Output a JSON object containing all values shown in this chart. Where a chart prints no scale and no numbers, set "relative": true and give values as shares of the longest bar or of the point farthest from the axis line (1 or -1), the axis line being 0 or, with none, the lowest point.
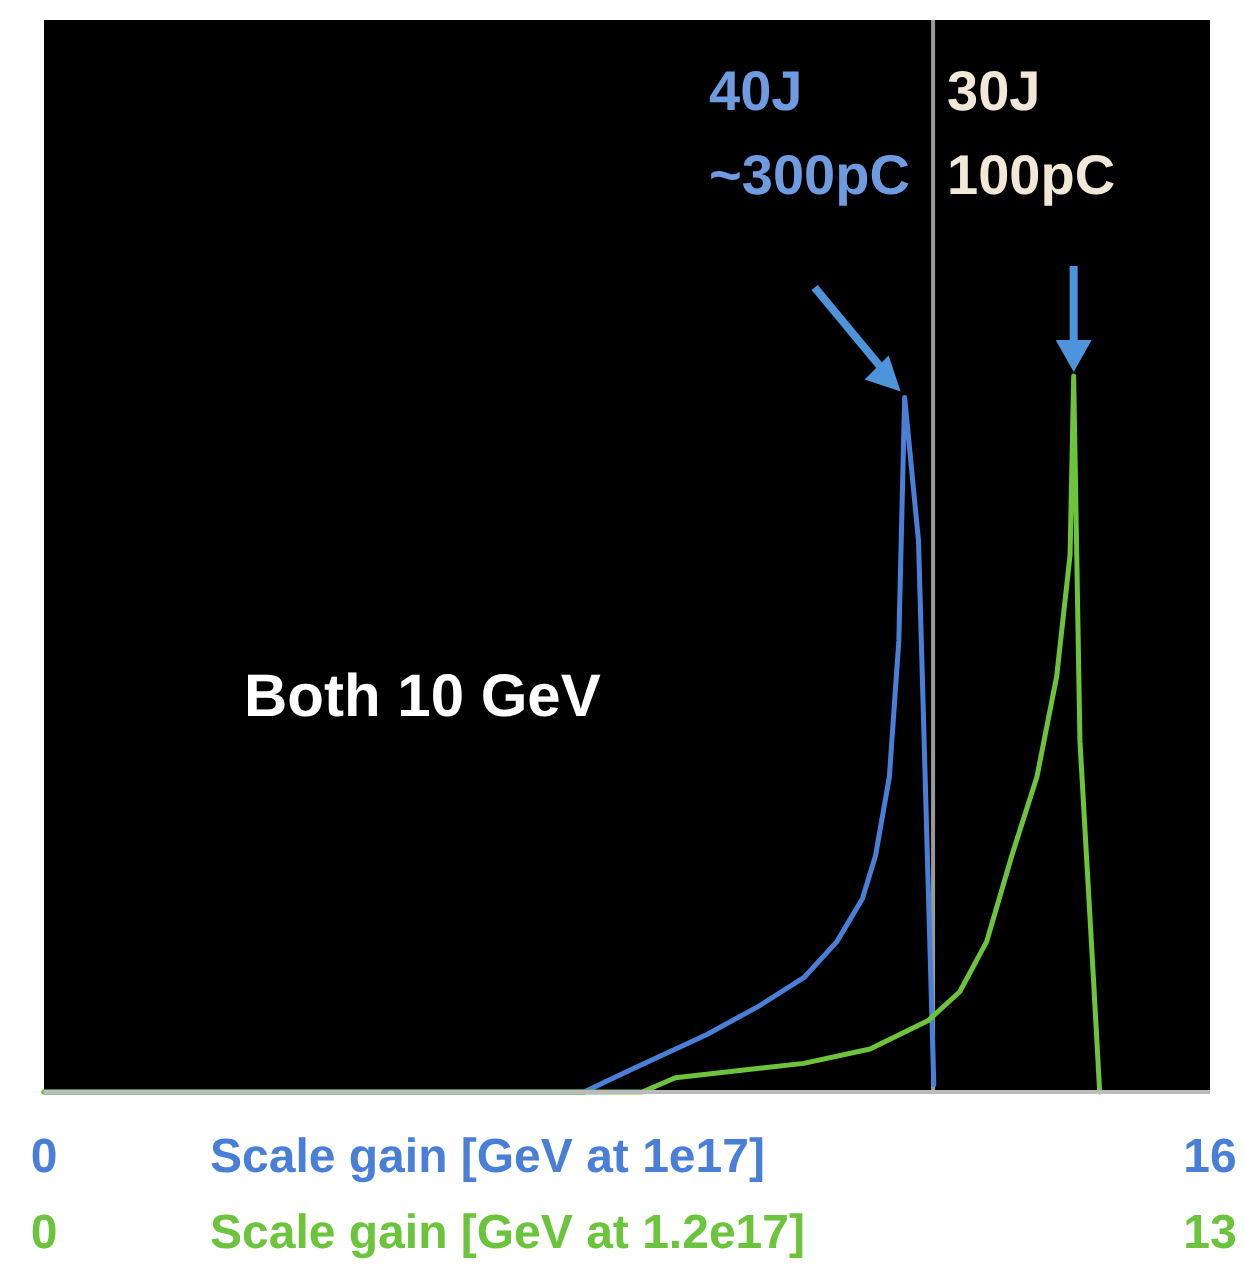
{
  "chart_data": {
    "type": "line",
    "relative": true,
    "grid": false,
    "line_style": "solid",
    "xlim": [
      0,
      16
    ],
    "xticks": [
      0,
      16
    ],
    "xlabel": "Scale gain [GeV at 1e17]",
    "x2lim": [
      0,
      13
    ],
    "x2ticks": [
      0,
      13
    ],
    "x2label": "Scale gain [GeV at 1.2e17]",
    "series": [
      {
        "color": "#4a7fd8",
        "x": [
          0,
          7.41,
          8.03,
          9.09,
          9.81,
          10.43,
          10.88,
          11.23,
          11.41,
          11.6,
          11.73,
          11.81,
          12.0,
          12.13,
          12.21
        ],
        "values": [
          0,
          0,
          0.03,
          0.08,
          0.12,
          0.16,
          0.21,
          0.27,
          0.33,
          0.44,
          0.63,
          0.97,
          0.77,
          0.3,
          0.01
        ]
      },
      {
        "color": "#6cc43c",
        "axis": "x2",
        "x": [
          0,
          6.67,
          7.04,
          8.47,
          9.21,
          9.86,
          10.21,
          10.51,
          10.79,
          11.07,
          11.29,
          11.44,
          11.48,
          11.55,
          11.7,
          11.77
        ],
        "values": [
          0,
          0,
          0.02,
          0.04,
          0.06,
          0.1,
          0.14,
          0.21,
          0.33,
          0.44,
          0.58,
          0.75,
          1,
          0.49,
          0.16,
          0
        ]
      }
    ],
    "ref_lines": [
      {
        "axis": "x",
        "value": 12.2,
        "color": "#9a9a9a"
      }
    ],
    "annotations": [
      "40J\n~300pC",
      "30J\n100pC",
      "Both 10 GeV"
    ]
  }
}
